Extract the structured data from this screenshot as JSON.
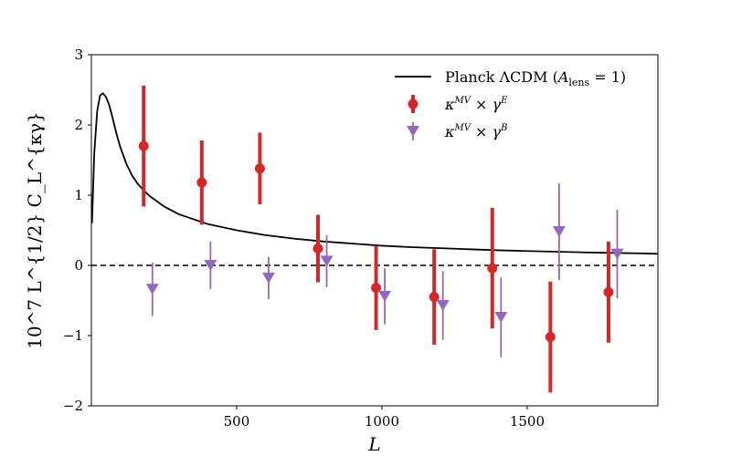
{
  "chart_data": {
    "type": "errorbar",
    "xlabel": "L",
    "ylabel": "10^7 L^{1/2} C_L^{κγ}",
    "xlim": [
      0,
      1950
    ],
    "ylim": [
      -2,
      3
    ],
    "x_ticks": [
      500,
      1000,
      1500
    ],
    "x_tick_labels": [
      "500",
      "1000",
      "1500"
    ],
    "y_ticks": [
      -2,
      -1,
      0,
      1,
      2,
      3
    ],
    "y_tick_labels": [
      "−2",
      "−1",
      "0",
      "1",
      "2",
      "3"
    ],
    "reference_line": {
      "y": 0,
      "style": "dashed",
      "color": "#000000"
    },
    "legend": {
      "position": "top-right",
      "entries": [
        {
          "label": "Planck ΛCDM (A_lens = 1)",
          "text_main": "Planck ΛCDM (",
          "text_var": "A",
          "text_sub": "lens",
          "text_end": " = 1)"
        },
        {
          "label": "κ^MV × γ^E",
          "base": "κ",
          "sup1": "MV",
          "times": " × γ",
          "sup2": "E"
        },
        {
          "label": "κ^MV × γ^B",
          "base": "κ",
          "sup1": "MV",
          "times": " × γ",
          "sup2": "B"
        }
      ]
    },
    "model_curve": {
      "name": "Planck ΛCDM (A_lens = 1)",
      "color": "#000000",
      "x": [
        2,
        10,
        20,
        30,
        40,
        50,
        60,
        70,
        80,
        90,
        100,
        120,
        140,
        160,
        180,
        200,
        250,
        300,
        400,
        500,
        600,
        700,
        800,
        900,
        1000,
        1100,
        1200,
        1300,
        1400,
        1500,
        1600,
        1700,
        1800,
        1900,
        1950
      ],
      "y": [
        0.6,
        1.6,
        2.2,
        2.42,
        2.45,
        2.4,
        2.3,
        2.15,
        1.98,
        1.82,
        1.68,
        1.45,
        1.28,
        1.16,
        1.07,
        0.99,
        0.84,
        0.73,
        0.59,
        0.5,
        0.43,
        0.38,
        0.34,
        0.31,
        0.28,
        0.26,
        0.245,
        0.23,
        0.215,
        0.205,
        0.195,
        0.185,
        0.178,
        0.17,
        0.165
      ]
    },
    "series": [
      {
        "name": "κ^MV × γ^E",
        "color": "#d62728",
        "marker": "circle",
        "x": [
          180,
          380,
          580,
          780,
          980,
          1180,
          1380,
          1580,
          1780
        ],
        "y": [
          1.7,
          1.18,
          1.38,
          0.24,
          -0.32,
          -0.45,
          -0.04,
          -1.02,
          -0.38
        ],
        "err": [
          0.86,
          0.6,
          0.51,
          0.48,
          0.6,
          0.68,
          0.86,
          0.79,
          0.72
        ]
      },
      {
        "name": "κ^MV × γ^B",
        "color": "#9467bd",
        "marker": "triangle-down",
        "x": [
          210,
          410,
          610,
          810,
          1010,
          1210,
          1410,
          1610,
          1810
        ],
        "y": [
          -0.34,
          0.0,
          -0.18,
          0.06,
          -0.44,
          -0.57,
          -0.74,
          0.48,
          0.16
        ],
        "err": [
          0.38,
          0.34,
          0.3,
          0.37,
          0.4,
          0.49,
          0.57,
          0.69,
          0.63
        ]
      }
    ]
  }
}
